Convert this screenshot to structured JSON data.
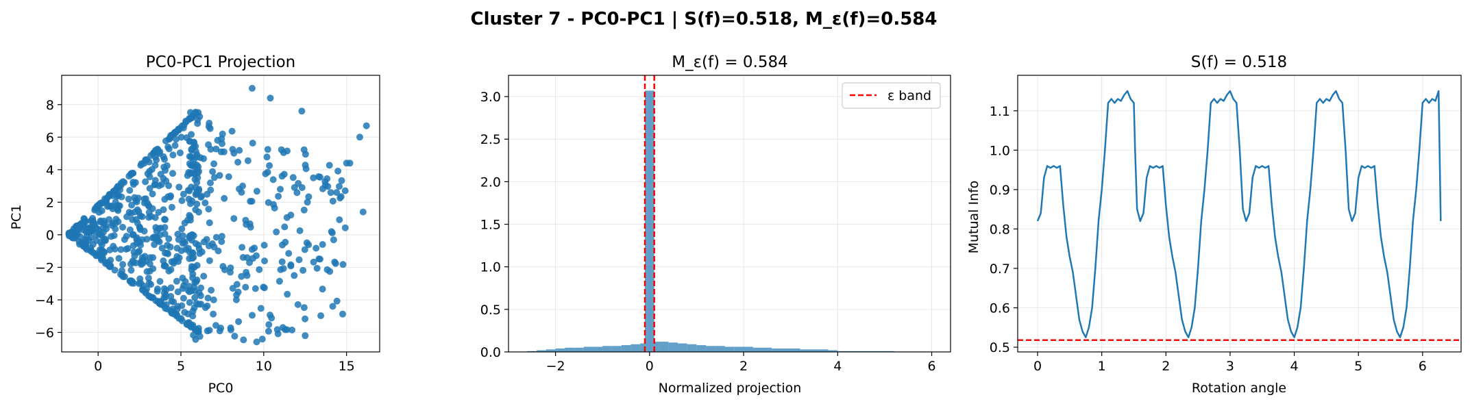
{
  "suptitle": "Cluster 7 - PC0-PC1 | S(f)=0.518, M_ε(f)=0.584",
  "chart_data": [
    {
      "type": "scatter",
      "title": "PC0-PC1 Projection",
      "xlabel": "PC0",
      "ylabel": "PC1",
      "xlim": [
        -2.2,
        17
      ],
      "ylim": [
        -7.2,
        9.8
      ],
      "xticks": [
        0,
        5,
        10,
        15
      ],
      "yticks": [
        -6,
        -4,
        -2,
        0,
        2,
        4,
        6,
        8
      ],
      "grid": true,
      "color": "#1f77b4",
      "description_points": "dense wedge from (-1.8,0) widening to x~6 (y from -6 to 7.7), sparse scatter beyond x=6",
      "outliers": [
        [
          9.3,
          9.0
        ],
        [
          10.4,
          8.4
        ],
        [
          12.3,
          7.6
        ],
        [
          16.2,
          6.7
        ],
        [
          15.8,
          6.0
        ],
        [
          15.0,
          4.4
        ],
        [
          16.0,
          1.4
        ],
        [
          12.5,
          -6.2
        ],
        [
          13.4,
          -1.5
        ],
        [
          14.4,
          2.6
        ],
        [
          15.2,
          4.4
        ],
        [
          13.0,
          3.5
        ]
      ]
    },
    {
      "type": "bar",
      "title": "M_ε(f) = 0.584",
      "xlabel": "Normalized projection",
      "ylabel": "",
      "xlim": [
        -3.0,
        6.4
      ],
      "ylim": [
        0,
        3.25
      ],
      "xticks": [
        -2,
        0,
        2,
        4,
        6
      ],
      "yticks": [
        0.0,
        0.5,
        1.0,
        1.5,
        2.0,
        2.5,
        3.0
      ],
      "grid": true,
      "color": "#1f77b4",
      "bin_edges": [
        -2.6,
        -2.4,
        -2.2,
        -2.0,
        -1.8,
        -1.6,
        -1.4,
        -1.2,
        -1.0,
        -0.8,
        -0.6,
        -0.4,
        -0.2,
        -0.1,
        0.1,
        0.2,
        0.4,
        0.6,
        0.8,
        1.0,
        1.2,
        1.4,
        1.6,
        1.8,
        2.0,
        2.2,
        2.4,
        2.6,
        2.8,
        3.0,
        3.2,
        3.4,
        3.6,
        3.8,
        4.0,
        4.4,
        4.8,
        5.2,
        5.6,
        6.0
      ],
      "values": [
        0.01,
        0.02,
        0.03,
        0.04,
        0.05,
        0.05,
        0.06,
        0.06,
        0.07,
        0.07,
        0.08,
        0.09,
        0.1,
        3.07,
        0.12,
        0.12,
        0.11,
        0.1,
        0.09,
        0.08,
        0.07,
        0.07,
        0.06,
        0.06,
        0.06,
        0.05,
        0.05,
        0.04,
        0.04,
        0.04,
        0.03,
        0.03,
        0.03,
        0.02,
        0.01,
        0.01,
        0.01,
        0.005,
        0.005
      ],
      "epsilon_band": [
        -0.1,
        0.1
      ],
      "legend": {
        "label": "ε band",
        "position": "top-right",
        "color": "#ff0000"
      }
    },
    {
      "type": "line",
      "title": "S(f) = 0.518",
      "xlabel": "Rotation angle",
      "ylabel": "Mutual Info",
      "xlim": [
        -0.31,
        6.6
      ],
      "ylim": [
        0.488,
        1.19
      ],
      "xticks": [
        0,
        1,
        2,
        3,
        4,
        5,
        6
      ],
      "yticks": [
        0.5,
        0.6,
        0.7,
        0.8,
        0.9,
        1.0,
        1.1
      ],
      "grid": true,
      "color": "#1f77b4",
      "hline": {
        "y": 0.518,
        "color": "#ff0000",
        "style": "dashed"
      },
      "x": [
        0.0,
        0.05,
        0.1,
        0.15,
        0.2,
        0.25,
        0.3,
        0.35,
        0.4,
        0.45,
        0.5,
        0.55,
        0.6,
        0.65,
        0.7,
        0.75,
        0.8,
        0.85,
        0.9,
        0.95,
        1.0,
        1.05,
        1.1,
        1.15,
        1.2,
        1.25,
        1.3,
        1.35,
        1.4,
        1.45,
        1.5,
        1.52,
        1.55,
        1.6,
        1.65,
        1.7,
        1.75,
        1.8,
        1.85,
        1.9,
        1.95,
        2.0,
        2.05,
        2.1,
        2.15,
        2.2,
        2.25,
        2.3,
        2.35,
        2.4,
        2.45,
        2.5,
        2.55,
        2.6,
        2.65,
        2.7,
        2.75,
        2.8,
        2.85,
        2.9,
        2.95,
        3.0,
        3.05,
        3.1,
        3.15,
        3.2,
        3.25,
        3.3,
        3.35,
        3.4,
        3.45,
        3.5,
        3.55,
        3.6,
        3.65,
        3.7,
        3.75,
        3.8,
        3.85,
        3.9,
        3.95,
        4.0,
        4.05,
        4.1,
        4.15,
        4.2,
        4.25,
        4.3,
        4.35,
        4.4,
        4.45,
        4.5,
        4.55,
        4.6,
        4.65,
        4.7,
        4.75,
        4.8,
        4.85,
        4.9,
        4.95,
        5.0,
        5.05,
        5.1,
        5.15,
        5.2,
        5.25,
        5.3,
        5.35,
        5.4,
        5.45,
        5.5,
        5.55,
        5.6,
        5.65,
        5.7,
        5.75,
        5.8,
        5.85,
        5.9,
        5.95,
        6.0,
        6.05,
        6.1,
        6.15,
        6.2,
        6.25,
        6.283
      ],
      "values": [
        0.82,
        0.84,
        0.93,
        0.96,
        0.955,
        0.96,
        0.955,
        0.96,
        0.86,
        0.78,
        0.73,
        0.69,
        0.63,
        0.57,
        0.54,
        0.525,
        0.55,
        0.6,
        0.7,
        0.82,
        0.9,
        1.0,
        1.12,
        1.13,
        1.12,
        1.13,
        1.125,
        1.14,
        1.15,
        1.13,
        1.12,
        1.0,
        0.85,
        0.82,
        0.84,
        0.93,
        0.96,
        0.955,
        0.96,
        0.955,
        0.96,
        0.86,
        0.78,
        0.73,
        0.69,
        0.63,
        0.57,
        0.54,
        0.525,
        0.55,
        0.6,
        0.7,
        0.82,
        0.9,
        1.0,
        1.12,
        1.13,
        1.12,
        1.13,
        1.125,
        1.14,
        1.15,
        1.13,
        1.12,
        1.0,
        0.85,
        0.82,
        0.84,
        0.93,
        0.96,
        0.955,
        0.96,
        0.955,
        0.96,
        0.86,
        0.78,
        0.73,
        0.69,
        0.63,
        0.57,
        0.54,
        0.525,
        0.55,
        0.6,
        0.7,
        0.82,
        0.9,
        1.0,
        1.12,
        1.13,
        1.12,
        1.13,
        1.125,
        1.14,
        1.15,
        1.13,
        1.12,
        1.0,
        0.85,
        0.82,
        0.84,
        0.93,
        0.96,
        0.955,
        0.96,
        0.955,
        0.96,
        0.86,
        0.78,
        0.73,
        0.69,
        0.63,
        0.57,
        0.54,
        0.525,
        0.55,
        0.6,
        0.7,
        0.82,
        0.9,
        1.0,
        1.12,
        1.13,
        1.12,
        1.13,
        1.125,
        1.15,
        0.82
      ]
    }
  ]
}
